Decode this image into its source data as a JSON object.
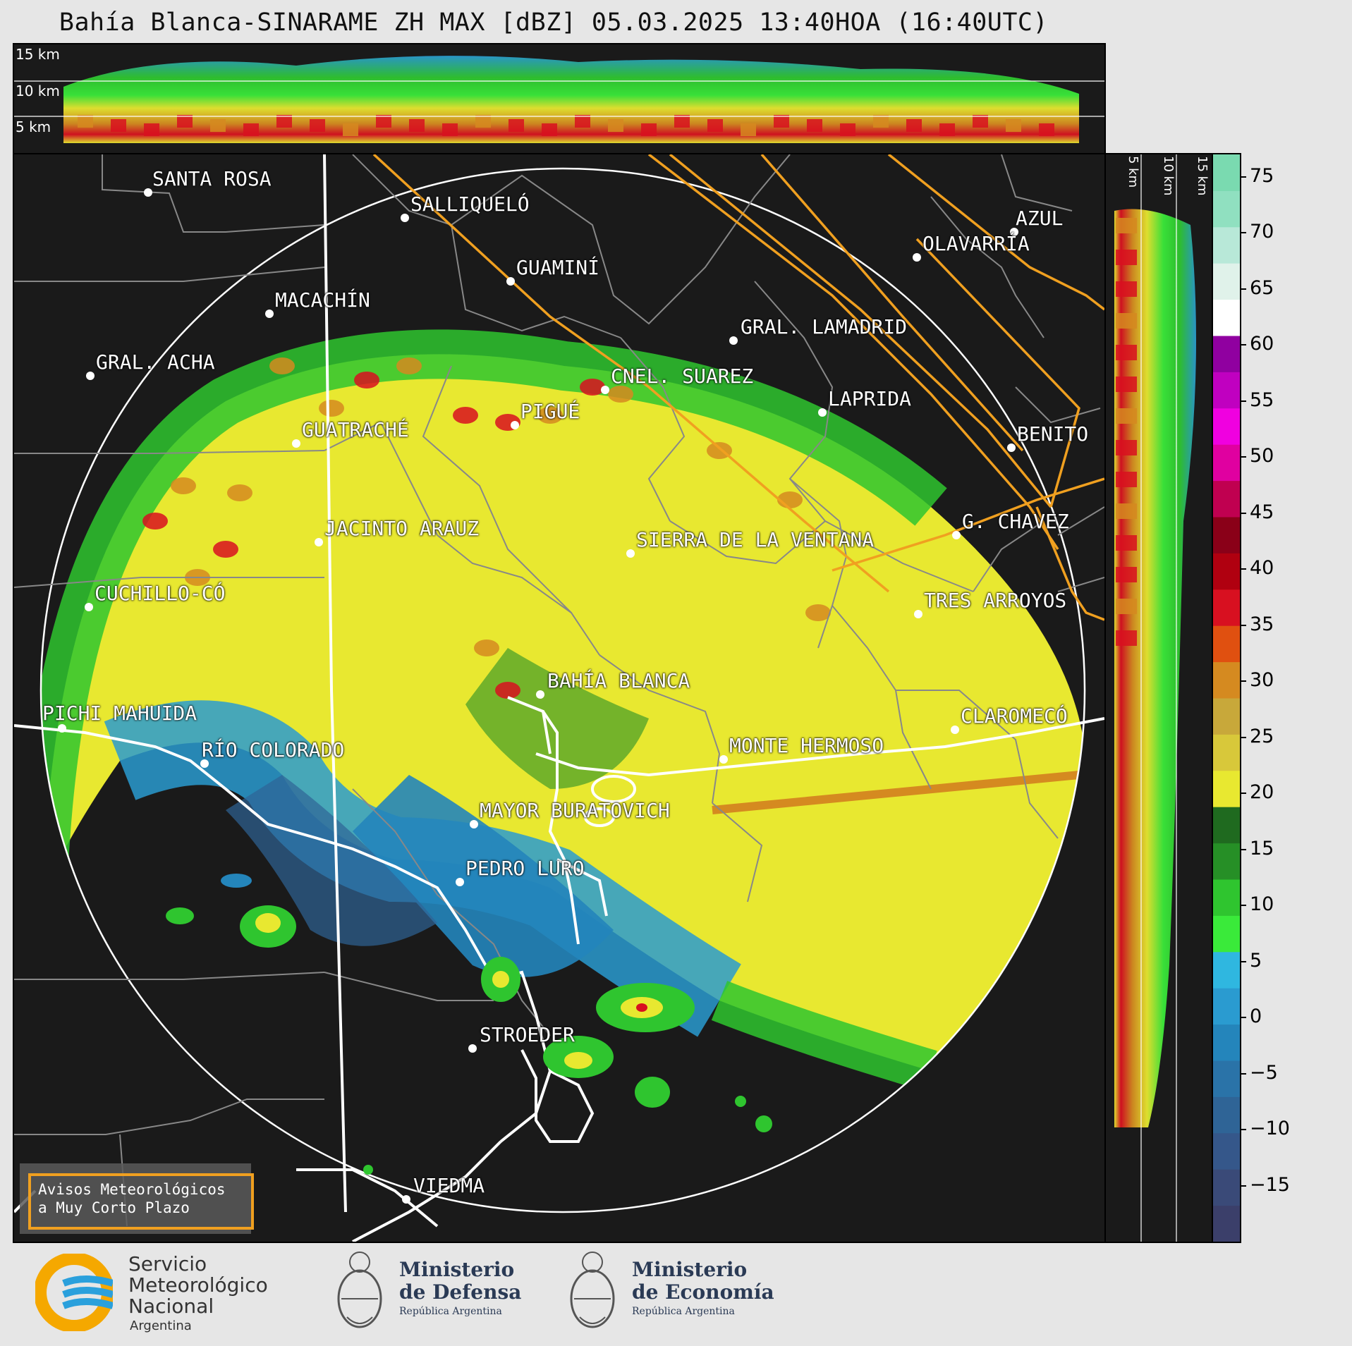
{
  "title": "Bahía Blanca-SINARAME ZH MAX [dBZ] 05.03.2025 13:40HOA (16:40UTC)",
  "top_panel": {
    "altitudes": [
      "15 km",
      "10 km",
      "5 km"
    ]
  },
  "side_panel": {
    "altitudes": [
      "5 km",
      "10 km",
      "15 km"
    ]
  },
  "colorbar": {
    "ticks": [
      "75",
      "70",
      "65",
      "60",
      "55",
      "50",
      "45",
      "40",
      "35",
      "30",
      "25",
      "20",
      "15",
      "10",
      "5",
      "0",
      "−5",
      "−10",
      "−15"
    ],
    "colors": [
      "#3b3f6a",
      "#3a4a78",
      "#35578a",
      "#2f6496",
      "#2a73a8",
      "#2485bb",
      "#2a9bd0",
      "#2fb7e0",
      "#3aea3a",
      "#2fc52f",
      "#268f26",
      "#1f6a1f",
      "#e8e830",
      "#d8c83a",
      "#c8a83a",
      "#d58a20",
      "#e05010",
      "#d81020",
      "#b00010",
      "#8a0018",
      "#c00050",
      "#e000a0",
      "#f000e0",
      "#c000c0",
      "#9000a0",
      "#ffffff",
      "#e0f2ea",
      "#b8e8d8",
      "#90e0c0",
      "#7adab0"
    ],
    "range": [
      -20,
      77
    ]
  },
  "cities": [
    {
      "name": "SANTA ROSA"
    },
    {
      "name": "SALLIQUELÓ"
    },
    {
      "name": "AZUL"
    },
    {
      "name": "OLAVARRÍA"
    },
    {
      "name": "GUAMINÍ"
    },
    {
      "name": "MACACHÍN"
    },
    {
      "name": "GRAL. LAMADRID"
    },
    {
      "name": "GRAL. ACHA"
    },
    {
      "name": "CNEL. SUAREZ"
    },
    {
      "name": "LAPRIDA"
    },
    {
      "name": "PIGUÉ"
    },
    {
      "name": "GUATRACHÉ"
    },
    {
      "name": "BENITO"
    },
    {
      "name": "G. CHAVEZ"
    },
    {
      "name": "JACINTO ARAUZ"
    },
    {
      "name": "SIERRA DE LA VENTANA"
    },
    {
      "name": "CUCHILLO-CÓ"
    },
    {
      "name": "TRES ARROYOS"
    },
    {
      "name": "BAHÍA BLANCA"
    },
    {
      "name": "PICHI MAHUIDA"
    },
    {
      "name": "CLAROMECÓ"
    },
    {
      "name": "RÍO COLORADO"
    },
    {
      "name": "MONTE HERMOSO"
    },
    {
      "name": "MAYOR BURATOVICH"
    },
    {
      "name": "PEDRO LURO"
    },
    {
      "name": "STROEDER"
    },
    {
      "name": "VIEDMA"
    }
  ],
  "warning": {
    "line1": "Avisos Meteorológicos",
    "line2": "a Muy Corto Plazo"
  },
  "footer": {
    "smn": [
      "Servicio",
      "Meteorológico",
      "Nacional",
      "Argentina"
    ],
    "defensa": [
      "Ministerio",
      "de Defensa",
      "República Argentina"
    ],
    "economia": [
      "Ministerio",
      "de Economía",
      "República Argentina"
    ]
  }
}
